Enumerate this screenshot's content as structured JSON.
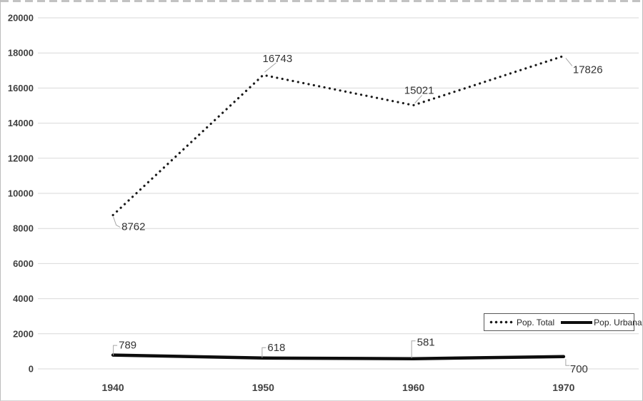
{
  "chart_data": {
    "type": "line",
    "title": "",
    "xlabel": "",
    "ylabel": "",
    "categories": [
      "1940",
      "1950",
      "1960",
      "1970"
    ],
    "series": [
      {
        "name": "Pop. Total",
        "style": "dotted",
        "color": "#1a1a1a",
        "values": [
          8762,
          16743,
          15021,
          17826
        ]
      },
      {
        "name": "Pop. Urbana",
        "style": "solid",
        "color": "#0d0d0d",
        "values": [
          789,
          618,
          581,
          700
        ]
      }
    ],
    "ylim": [
      0,
      20000
    ],
    "ytick_step": 2000,
    "grid": true,
    "data_labels_shown": true,
    "legend_position": "inside-lower-right"
  },
  "legend": {
    "items": [
      {
        "label": "Pop. Total"
      },
      {
        "label": "Pop. Urbana"
      }
    ]
  },
  "colors": {
    "gridline": "#d9d9d9",
    "axis_text": "#404040",
    "data_label_text": "#333333",
    "leader_line": "#a6a6a6",
    "series_total": "#1a1a1a",
    "series_urbana": "#0d0d0d",
    "legend_border": "#595959",
    "chart_border": "#bdbdbd"
  }
}
